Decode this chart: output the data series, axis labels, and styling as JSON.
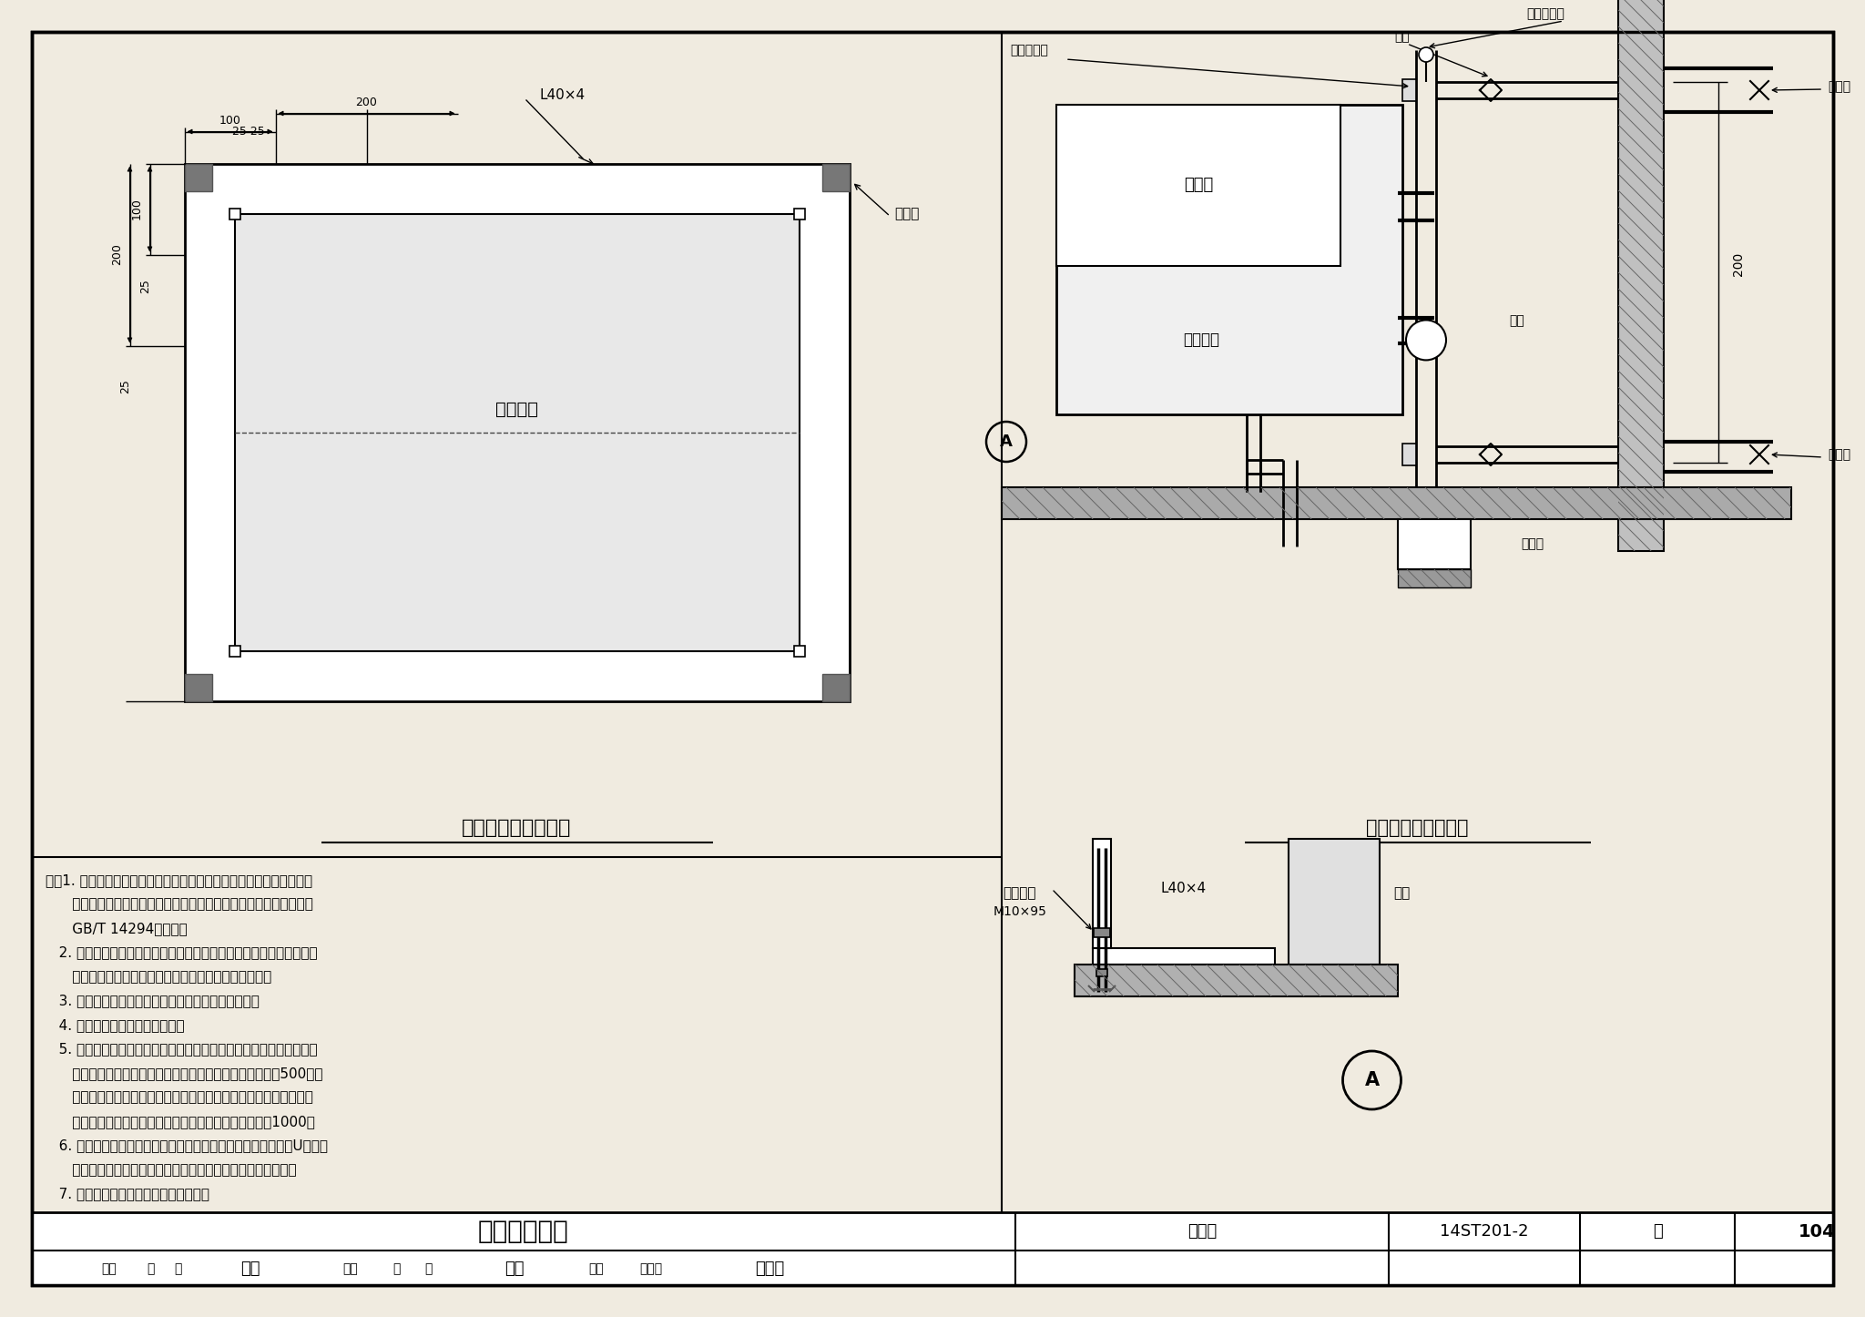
{
  "bg_color": "#f0ebe0",
  "title": "空调机组安装",
  "figure_number": "14ST201-2",
  "page": "104",
  "left_title": "空调机组基础安装图",
  "right_title": "空调机组接管安装图",
  "label_kong_tiao": "空调机组",
  "label_xin_feng": "新风口",
  "label_ji_chu_bian": "基础边",
  "label_L40": "L40×4",
  "label_die_fa1": "蝶阀",
  "label_die_fa2": "蝶阀",
  "label_xiang_jiao": "橡胶软接头",
  "label_zi_dong": "自动排气阀",
  "label_tong_guan_fa1": "铜闸阀",
  "label_tong_guan_fa2": "铜闸阀",
  "label_pai_shui": "排水沟",
  "label_peng_zhang": "膨胀螺栓",
  "label_M10": "M10×95",
  "label_ji_zu": "机组",
  "label_200_dim": "200",
  "note_lines": [
    "注：1. 组合式空调机组的现场组装应由供应商负责实施，组装完成后应",
    "      进行漏风率检测，漏风率应符合现行国家标准《组合式空调机组》",
    "      GB/T 14294的规定。",
    "   2. 机组接管最低点应设泄水阀，最高点应设放气阀；水管道与机组连",
    "      接宜采用橡胶柔性接头，管道应设置独立的支、吊架。",
    "   3. 在冬季使用时，应有防止盘管、管路冻结的措施。",
    "   4. 空调机组四周进行限位固定。",
    "   5. 有关检修空间的尺寸，机组的四周应尽量留有足够的检修空间。当",
    "      机房空间有限时，按以下原则，非检修门侧应留有不小于500的过",
    "      道，机组进出水管侧或检修门侧应留有不小于一个机组的宽度（以",
    "      便当万一需要更换盘管时有足够的空间），最小不小于1000。",
    "   6. 基础的强度应能满足机组的运行重量，高度应能满足凝结水U型弯的",
    "      要求；凝结水的水封应按空调机组技术文件的要求进行设置。",
    "   7. 排水管出口方向顺排水沟水流方向。"
  ],
  "footer_row1": "空调机组安装",
  "footer_tujihao": "图集号",
  "footer_ye": "页"
}
